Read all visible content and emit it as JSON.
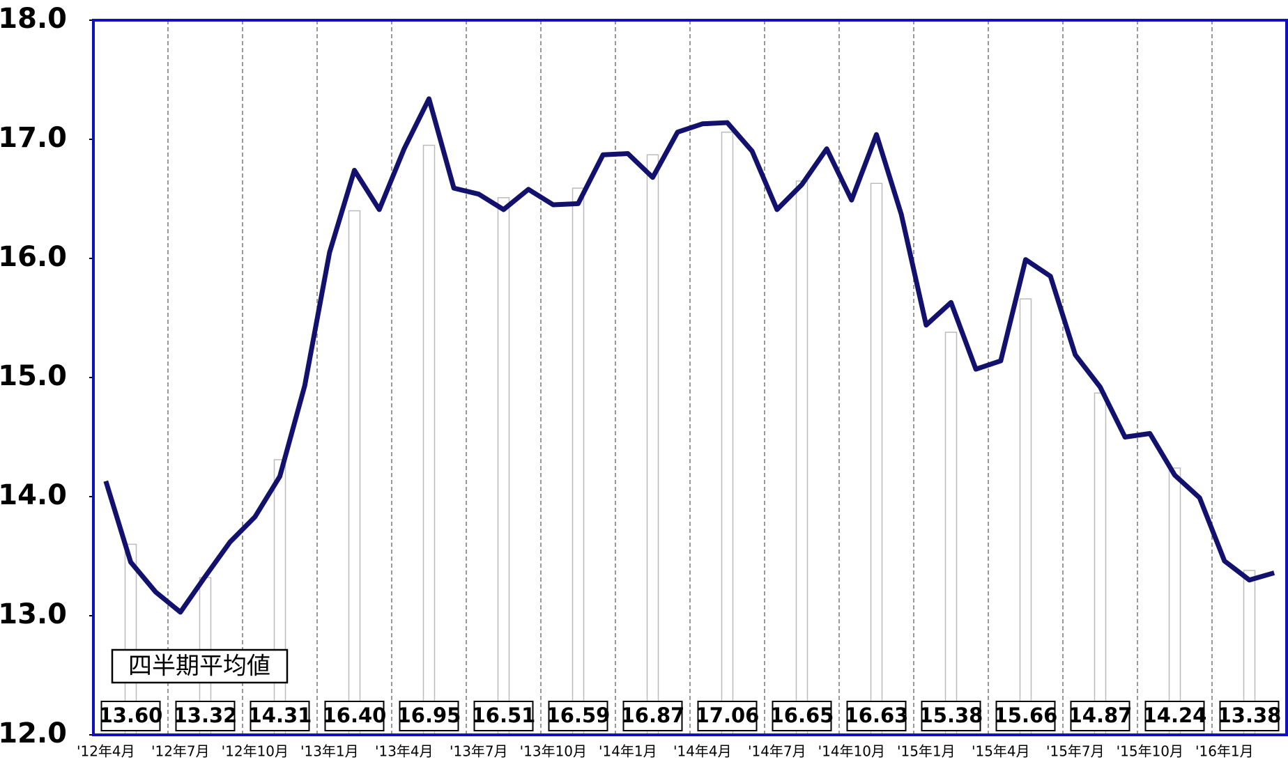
{
  "chart_data": {
    "type": "line",
    "categories": [
      "'12年4月",
      null,
      null,
      "'12年7月",
      null,
      null,
      "'12年10月",
      null,
      null,
      "'13年1月",
      null,
      null,
      "'13年4月",
      null,
      null,
      "'13年7月",
      null,
      null,
      "'13年10月",
      null,
      null,
      "'14年1月",
      null,
      null,
      "'14年4月",
      null,
      null,
      "'14年7月",
      null,
      null,
      "'14年10月",
      null,
      null,
      "'15年1月",
      null,
      null,
      "'15年4月",
      null,
      null,
      "'15年7月",
      null,
      null,
      "'15年10月",
      null,
      null,
      "'16年1月",
      null,
      null
    ],
    "series": [
      {
        "type": "bar",
        "color": "#ffffff",
        "values": [
          null,
          13.6,
          null,
          null,
          13.32,
          null,
          null,
          14.31,
          null,
          null,
          16.4,
          null,
          null,
          16.95,
          null,
          null,
          16.51,
          null,
          null,
          16.59,
          null,
          null,
          16.87,
          null,
          null,
          17.06,
          null,
          null,
          16.65,
          null,
          null,
          16.63,
          null,
          null,
          15.38,
          null,
          null,
          15.66,
          null,
          null,
          14.87,
          null,
          null,
          14.24,
          null,
          null,
          13.38,
          null
        ],
        "value_labels": [
          null,
          "13.60",
          null,
          null,
          "13.32",
          null,
          null,
          "14.31",
          null,
          null,
          "16.40",
          null,
          null,
          "16.95",
          null,
          null,
          "16.51",
          null,
          null,
          "16.59",
          null,
          null,
          "16.87",
          null,
          null,
          "17.06",
          null,
          null,
          "16.65",
          null,
          null,
          "16.63",
          null,
          null,
          "15.38",
          null,
          null,
          "15.66",
          null,
          null,
          "14.87",
          null,
          null,
          "14.24",
          null,
          null,
          "13.38",
          null
        ]
      },
      {
        "type": "line",
        "color": "#12126e",
        "values": [
          14.13,
          13.45,
          13.2,
          13.03,
          13.33,
          13.62,
          13.83,
          14.17,
          14.93,
          16.05,
          16.74,
          16.41,
          16.92,
          17.34,
          16.59,
          16.54,
          16.41,
          16.58,
          16.45,
          16.46,
          16.87,
          16.88,
          16.68,
          17.06,
          17.13,
          17.14,
          16.9,
          16.41,
          16.62,
          16.92,
          16.49,
          17.04,
          16.37,
          15.44,
          15.63,
          15.07,
          15.14,
          15.99,
          15.85,
          15.19,
          14.92,
          14.5,
          14.53,
          14.18,
          13.99,
          13.46,
          13.3,
          13.36
        ]
      }
    ],
    "annotation": "四半期平均値",
    "ylim": [
      12,
      18
    ],
    "yticks": [
      {
        "value": 12,
        "label": "12.0"
      },
      {
        "value": 13,
        "label": "13.0"
      },
      {
        "value": 14,
        "label": "14.0"
      },
      {
        "value": 15,
        "label": "15.0"
      },
      {
        "value": 16,
        "label": "16.0"
      },
      {
        "value": 17,
        "label": "17.0"
      },
      {
        "value": 18,
        "label": "18.0"
      }
    ],
    "grid": true
  }
}
